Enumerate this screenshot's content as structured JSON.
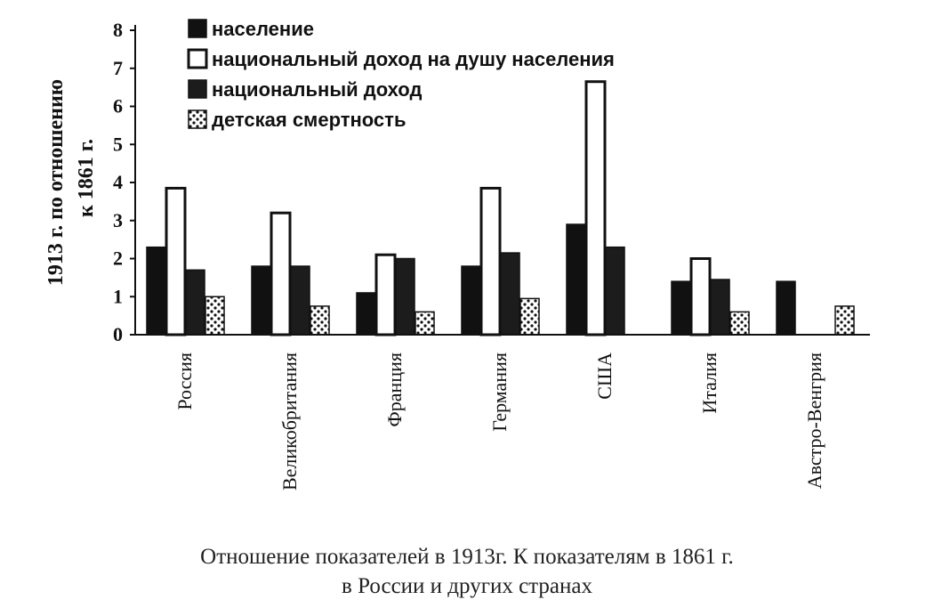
{
  "chart_data": {
    "type": "bar",
    "categories": [
      "Россия",
      "Великобритания",
      "Франция",
      "Германия",
      "США",
      "Италия",
      "Австро-Венгрия"
    ],
    "series": [
      {
        "name": "население",
        "values": [
          2.3,
          1.8,
          1.1,
          1.8,
          2.9,
          1.4,
          1.4
        ]
      },
      {
        "name": "национальный доход на душу населения",
        "values": [
          3.85,
          3.2,
          2.1,
          3.85,
          6.65,
          2.0,
          null
        ]
      },
      {
        "name": "национальный доход",
        "values": [
          1.7,
          1.8,
          2.0,
          2.15,
          2.3,
          1.45,
          null
        ]
      },
      {
        "name": "детская смертность",
        "values": [
          1.0,
          0.75,
          0.6,
          0.95,
          null,
          0.6,
          0.75
        ]
      }
    ],
    "series_colors": [
      "#111111",
      "#ffffff",
      "#1c1c1c",
      "#ffffff"
    ],
    "series_patterns": [
      "solid",
      "outline",
      "solid",
      "dots"
    ],
    "ylabel_line1": "1913 г. по отношению",
    "ylabel_line2": "к 1861 г.",
    "yticks": [
      "0",
      "1",
      "2",
      "3",
      "4",
      "5",
      "6",
      "7",
      "8"
    ],
    "ylim": [
      0,
      8
    ],
    "legend_position": "top-left",
    "grid": false
  },
  "caption": {
    "line1": "Отношение показателей в 1913г.  К показателям в 1861 г.",
    "line2": "в России  и  других странах"
  }
}
